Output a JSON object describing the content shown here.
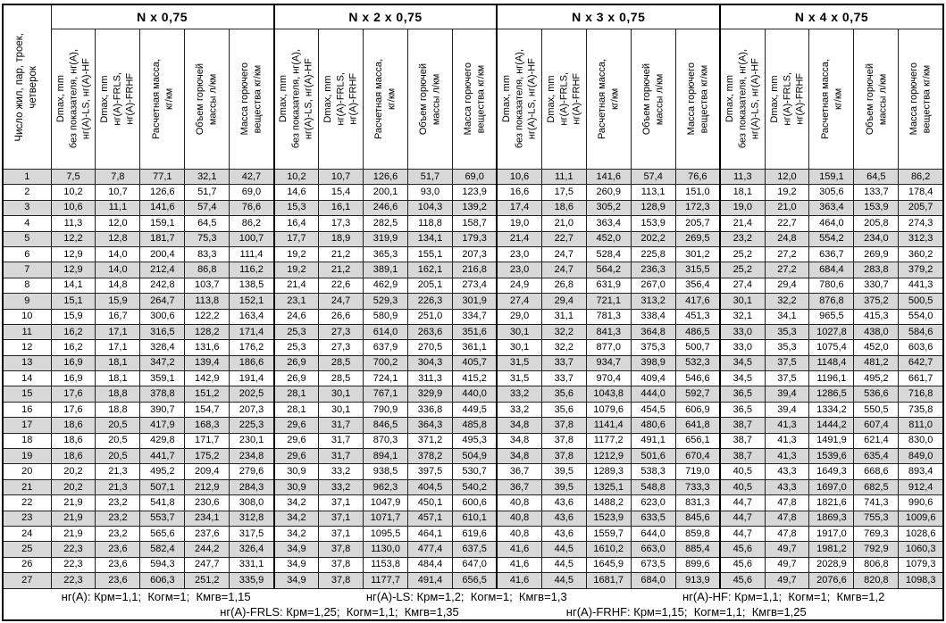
{
  "table": {
    "corner_header": "Число жил, пар, троек,\nчетверок",
    "group_headers": [
      "N x 0,75",
      "N x 2 x 0,75",
      "N x 3 x 0,75",
      "N x 4 x 0,75"
    ],
    "sub_headers": [
      "Dmax, mm\nбез показателя, нг(А),\nнг(А)-LS, нг(А)-HF",
      "Dmax, mm\nнг(А)-FRLS,\nнг(А)-FRHF",
      "Расчетная масса,\nкг/км",
      "Объем горючей\nмассы л/км",
      "Масса горючего\nвещества кг/км"
    ],
    "rows": [
      {
        "n": "1",
        "values": [
          "7,5",
          "7,8",
          "77,1",
          "32,1",
          "42,7",
          "10,2",
          "10,7",
          "126,6",
          "51,7",
          "69,0",
          "10,6",
          "11,1",
          "141,6",
          "57,4",
          "76,6",
          "11,3",
          "12,0",
          "159,1",
          "64,5",
          "86,2"
        ]
      },
      {
        "n": "2",
        "values": [
          "10,2",
          "10,7",
          "126,6",
          "51,7",
          "69,0",
          "14,6",
          "15,4",
          "200,1",
          "93,0",
          "123,9",
          "16,6",
          "17,5",
          "260,9",
          "113,1",
          "151,0",
          "18,1",
          "19,2",
          "305,6",
          "133,7",
          "178,4"
        ]
      },
      {
        "n": "3",
        "values": [
          "10,6",
          "11,1",
          "141,6",
          "57,4",
          "76,6",
          "15,3",
          "16,1",
          "246,6",
          "104,3",
          "139,2",
          "17,4",
          "18,6",
          "305,2",
          "128,9",
          "172,3",
          "19,0",
          "21,0",
          "363,4",
          "153,9",
          "205,7"
        ]
      },
      {
        "n": "4",
        "values": [
          "11,3",
          "12,0",
          "159,1",
          "64,5",
          "86,2",
          "16,4",
          "17,3",
          "282,5",
          "118,8",
          "158,7",
          "19,0",
          "21,0",
          "363,4",
          "153,9",
          "205,7",
          "21,4",
          "22,7",
          "464,0",
          "205,8",
          "274,3"
        ]
      },
      {
        "n": "5",
        "values": [
          "12,2",
          "12,8",
          "181,7",
          "75,3",
          "100,7",
          "17,7",
          "18,9",
          "319,9",
          "134,1",
          "179,3",
          "21,4",
          "22,7",
          "452,0",
          "202,2",
          "269,5",
          "23,2",
          "24,8",
          "554,2",
          "234,0",
          "312,3"
        ]
      },
      {
        "n": "6",
        "values": [
          "12,9",
          "14,0",
          "200,4",
          "83,3",
          "111,4",
          "19,2",
          "21,2",
          "365,3",
          "155,1",
          "207,3",
          "23,0",
          "24,7",
          "528,4",
          "225,8",
          "301,2",
          "25,2",
          "27,2",
          "636,7",
          "269,9",
          "360,2"
        ]
      },
      {
        "n": "7",
        "values": [
          "12,9",
          "14,0",
          "212,4",
          "86,8",
          "116,2",
          "19,2",
          "21,2",
          "389,1",
          "162,1",
          "216,8",
          "23,0",
          "24,7",
          "564,2",
          "236,3",
          "315,5",
          "25,2",
          "27,2",
          "684,4",
          "283,8",
          "379,2"
        ]
      },
      {
        "n": "8",
        "values": [
          "14,1",
          "14,8",
          "242,8",
          "103,7",
          "138,5",
          "21,4",
          "22,6",
          "462,9",
          "205,1",
          "273,4",
          "24,9",
          "26,8",
          "631,9",
          "267,0",
          "356,4",
          "27,4",
          "29,4",
          "780,6",
          "330,7",
          "441,3"
        ]
      },
      {
        "n": "9",
        "values": [
          "15,1",
          "15,9",
          "264,7",
          "113,8",
          "152,1",
          "23,1",
          "24,7",
          "529,3",
          "226,3",
          "301,9",
          "27,4",
          "29,4",
          "721,1",
          "313,2",
          "417,6",
          "30,1",
          "32,2",
          "876,8",
          "375,2",
          "500,5"
        ]
      },
      {
        "n": "10",
        "values": [
          "15,9",
          "16,7",
          "300,6",
          "122,2",
          "163,4",
          "24,6",
          "26,6",
          "580,9",
          "251,0",
          "334,7",
          "29,0",
          "31,1",
          "781,3",
          "338,4",
          "451,3",
          "32,1",
          "34,1",
          "965,5",
          "415,3",
          "554,0"
        ]
      },
      {
        "n": "11",
        "values": [
          "16,2",
          "17,1",
          "316,5",
          "128,2",
          "171,4",
          "25,3",
          "27,3",
          "614,0",
          "263,6",
          "351,6",
          "30,1",
          "32,2",
          "841,3",
          "364,8",
          "486,5",
          "33,0",
          "35,3",
          "1027,8",
          "438,0",
          "584,6"
        ]
      },
      {
        "n": "12",
        "values": [
          "16,2",
          "17,1",
          "328,4",
          "131,6",
          "176,2",
          "25,3",
          "27,3",
          "637,9",
          "270,5",
          "361,1",
          "30,1",
          "32,2",
          "877,0",
          "375,3",
          "500,7",
          "33,0",
          "35,3",
          "1075,4",
          "452,0",
          "603,6"
        ]
      },
      {
        "n": "13",
        "values": [
          "16,9",
          "18,1",
          "347,2",
          "139,4",
          "186,6",
          "26,9",
          "28,5",
          "700,2",
          "304,3",
          "405,7",
          "31,5",
          "33,7",
          "934,7",
          "398,9",
          "532,3",
          "34,5",
          "37,5",
          "1148,4",
          "481,2",
          "642,7"
        ]
      },
      {
        "n": "14",
        "values": [
          "16,9",
          "18,1",
          "359,1",
          "142,9",
          "191,4",
          "26,9",
          "28,5",
          "724,1",
          "311,3",
          "415,2",
          "31,5",
          "33,7",
          "970,4",
          "409,4",
          "546,6",
          "34,5",
          "37,5",
          "1196,1",
          "495,2",
          "661,7"
        ]
      },
      {
        "n": "15",
        "values": [
          "17,6",
          "18,8",
          "378,8",
          "151,2",
          "202,5",
          "28,1",
          "30,1",
          "767,1",
          "329,9",
          "440,0",
          "33,2",
          "35,6",
          "1043,8",
          "444,0",
          "592,7",
          "36,5",
          "39,4",
          "1286,5",
          "536,6",
          "716,8"
        ]
      },
      {
        "n": "16",
        "values": [
          "17,6",
          "18,8",
          "390,7",
          "154,7",
          "207,3",
          "28,1",
          "30,1",
          "790,9",
          "336,8",
          "449,5",
          "33,2",
          "35,6",
          "1079,6",
          "454,5",
          "606,9",
          "36,5",
          "39,4",
          "1334,2",
          "550,5",
          "735,8"
        ]
      },
      {
        "n": "17",
        "values": [
          "18,6",
          "20,5",
          "417,9",
          "168,3",
          "225,3",
          "29,6",
          "31,7",
          "846,5",
          "364,3",
          "485,8",
          "34,8",
          "37,8",
          "1141,4",
          "480,6",
          "641,8",
          "38,7",
          "41,3",
          "1444,2",
          "607,4",
          "811,0"
        ]
      },
      {
        "n": "18",
        "values": [
          "18,6",
          "20,5",
          "429,8",
          "171,7",
          "230,1",
          "29,6",
          "31,7",
          "870,3",
          "371,2",
          "495,3",
          "34,8",
          "37,8",
          "1177,2",
          "491,1",
          "656,1",
          "38,7",
          "41,3",
          "1491,9",
          "621,4",
          "830,0"
        ]
      },
      {
        "n": "19",
        "values": [
          "18,6",
          "20,5",
          "441,7",
          "175,2",
          "234,8",
          "29,6",
          "31,7",
          "894,1",
          "378,2",
          "504,9",
          "34,8",
          "37,8",
          "1212,9",
          "501,6",
          "670,4",
          "38,7",
          "41,3",
          "1539,6",
          "635,4",
          "849,0"
        ]
      },
      {
        "n": "20",
        "values": [
          "20,2",
          "21,3",
          "495,2",
          "209,4",
          "279,6",
          "30,9",
          "33,2",
          "938,5",
          "397,5",
          "530,7",
          "36,7",
          "39,5",
          "1289,3",
          "538,3",
          "719,0",
          "40,5",
          "43,3",
          "1649,3",
          "668,6",
          "893,4"
        ]
      },
      {
        "n": "21",
        "values": [
          "20,2",
          "21,3",
          "507,1",
          "212,9",
          "284,3",
          "30,9",
          "33,2",
          "962,3",
          "404,5",
          "540,2",
          "36,7",
          "39,5",
          "1325,1",
          "548,8",
          "733,3",
          "40,5",
          "43,3",
          "1697,0",
          "682,5",
          "912,4"
        ]
      },
      {
        "n": "22",
        "values": [
          "21,9",
          "23,2",
          "541,8",
          "230,6",
          "308,0",
          "34,2",
          "37,1",
          "1047,9",
          "450,1",
          "600,6",
          "40,8",
          "43,6",
          "1488,2",
          "623,0",
          "831,3",
          "44,7",
          "47,8",
          "1821,6",
          "741,3",
          "990,6"
        ]
      },
      {
        "n": "23",
        "values": [
          "21,9",
          "23,2",
          "553,7",
          "234,1",
          "312,8",
          "34,2",
          "37,1",
          "1071,7",
          "457,1",
          "610,1",
          "40,8",
          "43,6",
          "1523,9",
          "633,5",
          "845,6",
          "44,7",
          "47,8",
          "1869,3",
          "755,3",
          "1009,6"
        ]
      },
      {
        "n": "24",
        "values": [
          "21,9",
          "23,2",
          "565,6",
          "237,6",
          "317,5",
          "34,2",
          "37,1",
          "1095,5",
          "464,1",
          "619,6",
          "40,8",
          "43,6",
          "1559,7",
          "644,0",
          "859,8",
          "44,7",
          "47,8",
          "1917,0",
          "769,3",
          "1028,6"
        ]
      },
      {
        "n": "25",
        "values": [
          "22,3",
          "23,6",
          "582,4",
          "244,2",
          "326,4",
          "34,9",
          "37,8",
          "1130,0",
          "477,4",
          "637,5",
          "41,6",
          "44,5",
          "1610,2",
          "663,0",
          "885,4",
          "45,6",
          "49,7",
          "1981,2",
          "792,9",
          "1060,3"
        ]
      },
      {
        "n": "26",
        "values": [
          "22,3",
          "23,6",
          "594,3",
          "247,7",
          "331,1",
          "34,9",
          "37,8",
          "1153,8",
          "484,4",
          "647,0",
          "41,6",
          "44,5",
          "1645,9",
          "673,5",
          "899,6",
          "45,6",
          "49,7",
          "2028,9",
          "806,8",
          "1079,3"
        ]
      },
      {
        "n": "27",
        "values": [
          "22,3",
          "23,6",
          "606,3",
          "251,2",
          "335,9",
          "34,9",
          "37,8",
          "1177,7",
          "491,4",
          "656,5",
          "41,6",
          "44,5",
          "1681,7",
          "684,0",
          "913,9",
          "45,6",
          "49,7",
          "2076,6",
          "820,8",
          "1098,3"
        ]
      }
    ],
    "footer_line1": [
      "нг(А): Крм=1,1;  Когм=1;  Кмгв=1,15",
      "нг(А)-LS: Крм=1,2;  Когм=1;  Кмгв=1,3",
      "нг(А)-HF: Крм=1,1;  Когм=1;  Кмгв=1,2"
    ],
    "footer_line2": [
      "нг(А)-FRLS: Крм=1,25;  Когм=1,1;  Кмгв=1,35",
      "нг(А)-FRHF: Крм=1,15;  Когм=1,1;  Кмгв=1,25"
    ]
  },
  "colors": {
    "row_stripe": "#d8d8d8",
    "border": "#000000",
    "background": "#ffffff"
  }
}
